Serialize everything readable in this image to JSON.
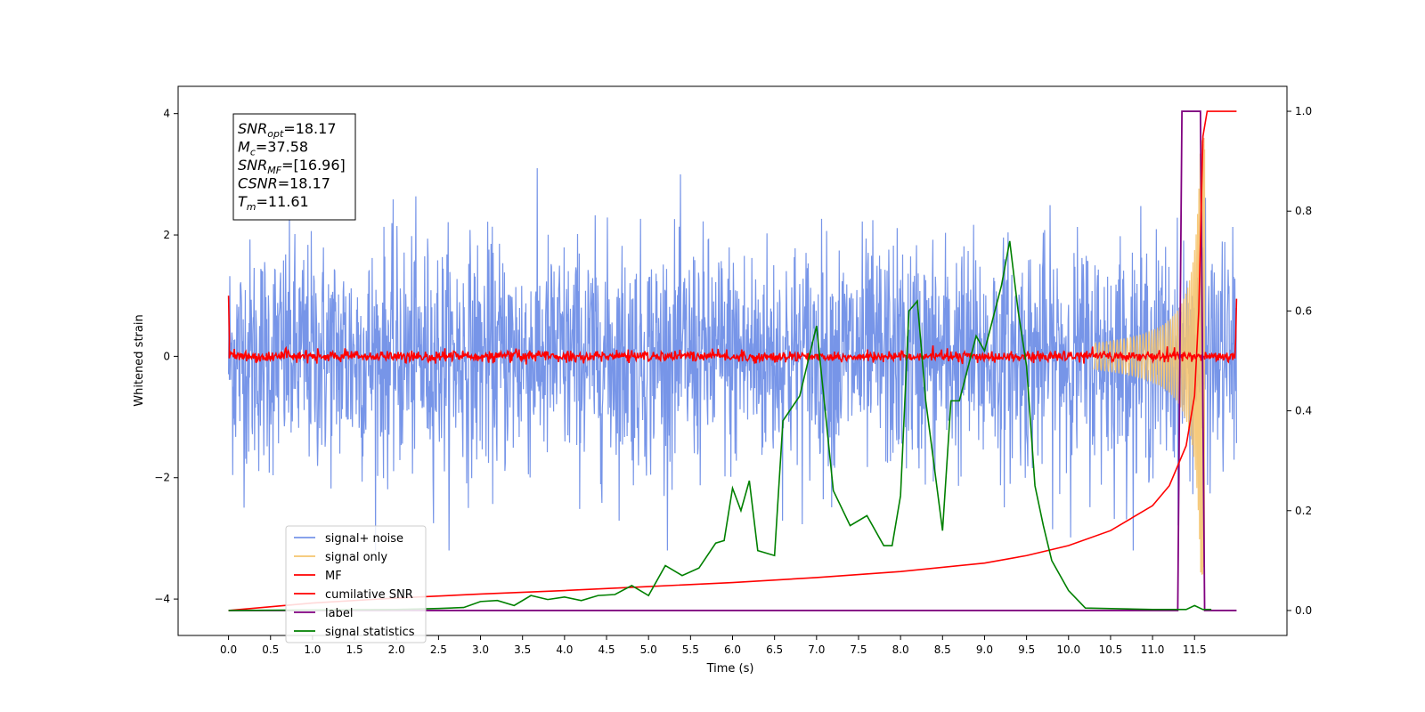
{
  "chart_data": {
    "type": "line",
    "xlabel": "Time (s)",
    "ylabel": "Whitened strain",
    "xlim": [
      -0.6,
      12.6
    ],
    "ylim": [
      -4.6,
      4.45
    ],
    "y2lim": [
      -0.05,
      1.05
    ],
    "xticks": [
      "0.0",
      "0.5",
      "1.0",
      "1.5",
      "2.0",
      "2.5",
      "3.0",
      "3.5",
      "4.0",
      "4.5",
      "5.0",
      "5.5",
      "6.0",
      "6.5",
      "7.0",
      "7.5",
      "8.0",
      "8.5",
      "9.0",
      "9.5",
      "10.0",
      "10.5",
      "11.0",
      "11.5"
    ],
    "yticks": [
      "4",
      "2",
      "0",
      "−2",
      "−4"
    ],
    "y2ticks": [
      "1.0",
      "0.8",
      "0.6",
      "0.4",
      "0.2",
      "0.0"
    ],
    "legend_position": "lower-left",
    "legend": [
      "signal+ noise",
      "signal only",
      "MF",
      "cumilative SNR",
      "label",
      "signal statistics"
    ],
    "annotation": {
      "lines": [
        {
          "main": "SNR",
          "sub": "opt",
          "value": "=18.17"
        },
        {
          "main": "M",
          "sub": "c",
          "value": "=37.58"
        },
        {
          "main": "SNR",
          "sub": "MF",
          "value": "=[16.96]"
        },
        {
          "main": "CSNR",
          "sub": "",
          "value": "=18.17"
        },
        {
          "main": "T",
          "sub": "m",
          "value": "=11.61"
        }
      ]
    },
    "series": [
      {
        "name": "signal+ noise",
        "axis": "left",
        "color": "#7795e8",
        "description": "noise band approx amplitude 1.5-3 around 0, time 0 to 12"
      },
      {
        "name": "signal only",
        "axis": "left",
        "color": "#f5c46f",
        "description": "chirp rising to ~±3.5 near t=11.5"
      },
      {
        "name": "MF",
        "axis": "left",
        "color": "#ff0000",
        "description": "near 0, starts ~1.0 at t=0 and ends ~1.0 at t=12"
      },
      {
        "name": "cumilative SNR",
        "axis": "right",
        "color": "#ff0000",
        "x": [
          0.0,
          1.0,
          2.0,
          3.0,
          4.0,
          5.0,
          6.0,
          7.0,
          8.0,
          9.0,
          9.5,
          10.0,
          10.5,
          11.0,
          11.2,
          11.4,
          11.5,
          11.55,
          11.6,
          11.65,
          11.7,
          12.0
        ],
        "y": [
          0.0,
          0.015,
          0.025,
          0.033,
          0.04,
          0.048,
          0.056,
          0.066,
          0.078,
          0.095,
          0.11,
          0.13,
          0.16,
          0.21,
          0.25,
          0.33,
          0.43,
          0.6,
          0.95,
          1.0,
          1.0,
          1.0
        ]
      },
      {
        "name": "label",
        "axis": "right",
        "color": "#800080",
        "x": [
          0.0,
          11.3,
          11.35,
          11.57,
          11.62,
          12.0
        ],
        "y": [
          0.0,
          0.0,
          1.0,
          1.0,
          0.0,
          0.0
        ]
      },
      {
        "name": "signal statistics",
        "axis": "right",
        "color": "#008000",
        "x": [
          0.0,
          2.0,
          2.5,
          2.8,
          3.0,
          3.2,
          3.4,
          3.6,
          3.8,
          4.0,
          4.2,
          4.4,
          4.6,
          4.8,
          5.0,
          5.2,
          5.4,
          5.6,
          5.8,
          5.9,
          6.0,
          6.1,
          6.2,
          6.3,
          6.5,
          6.6,
          6.8,
          6.9,
          7.0,
          7.2,
          7.4,
          7.6,
          7.8,
          7.9,
          8.0,
          8.1,
          8.2,
          8.3,
          8.5,
          8.6,
          8.7,
          8.9,
          9.0,
          9.2,
          9.3,
          9.4,
          9.5,
          9.6,
          9.7,
          9.8,
          10.0,
          10.2,
          11.0,
          11.4,
          11.5,
          11.6,
          11.7
        ],
        "y": [
          0.0,
          0.002,
          0.004,
          0.006,
          0.018,
          0.02,
          0.01,
          0.03,
          0.022,
          0.027,
          0.02,
          0.03,
          0.032,
          0.05,
          0.03,
          0.09,
          0.07,
          0.085,
          0.135,
          0.14,
          0.245,
          0.2,
          0.26,
          0.12,
          0.11,
          0.38,
          0.43,
          0.5,
          0.57,
          0.24,
          0.17,
          0.19,
          0.13,
          0.13,
          0.23,
          0.6,
          0.62,
          0.42,
          0.16,
          0.42,
          0.42,
          0.55,
          0.52,
          0.65,
          0.74,
          0.6,
          0.49,
          0.25,
          0.17,
          0.1,
          0.04,
          0.005,
          0.002,
          0.002,
          0.01,
          0.002,
          0.002
        ]
      }
    ]
  }
}
